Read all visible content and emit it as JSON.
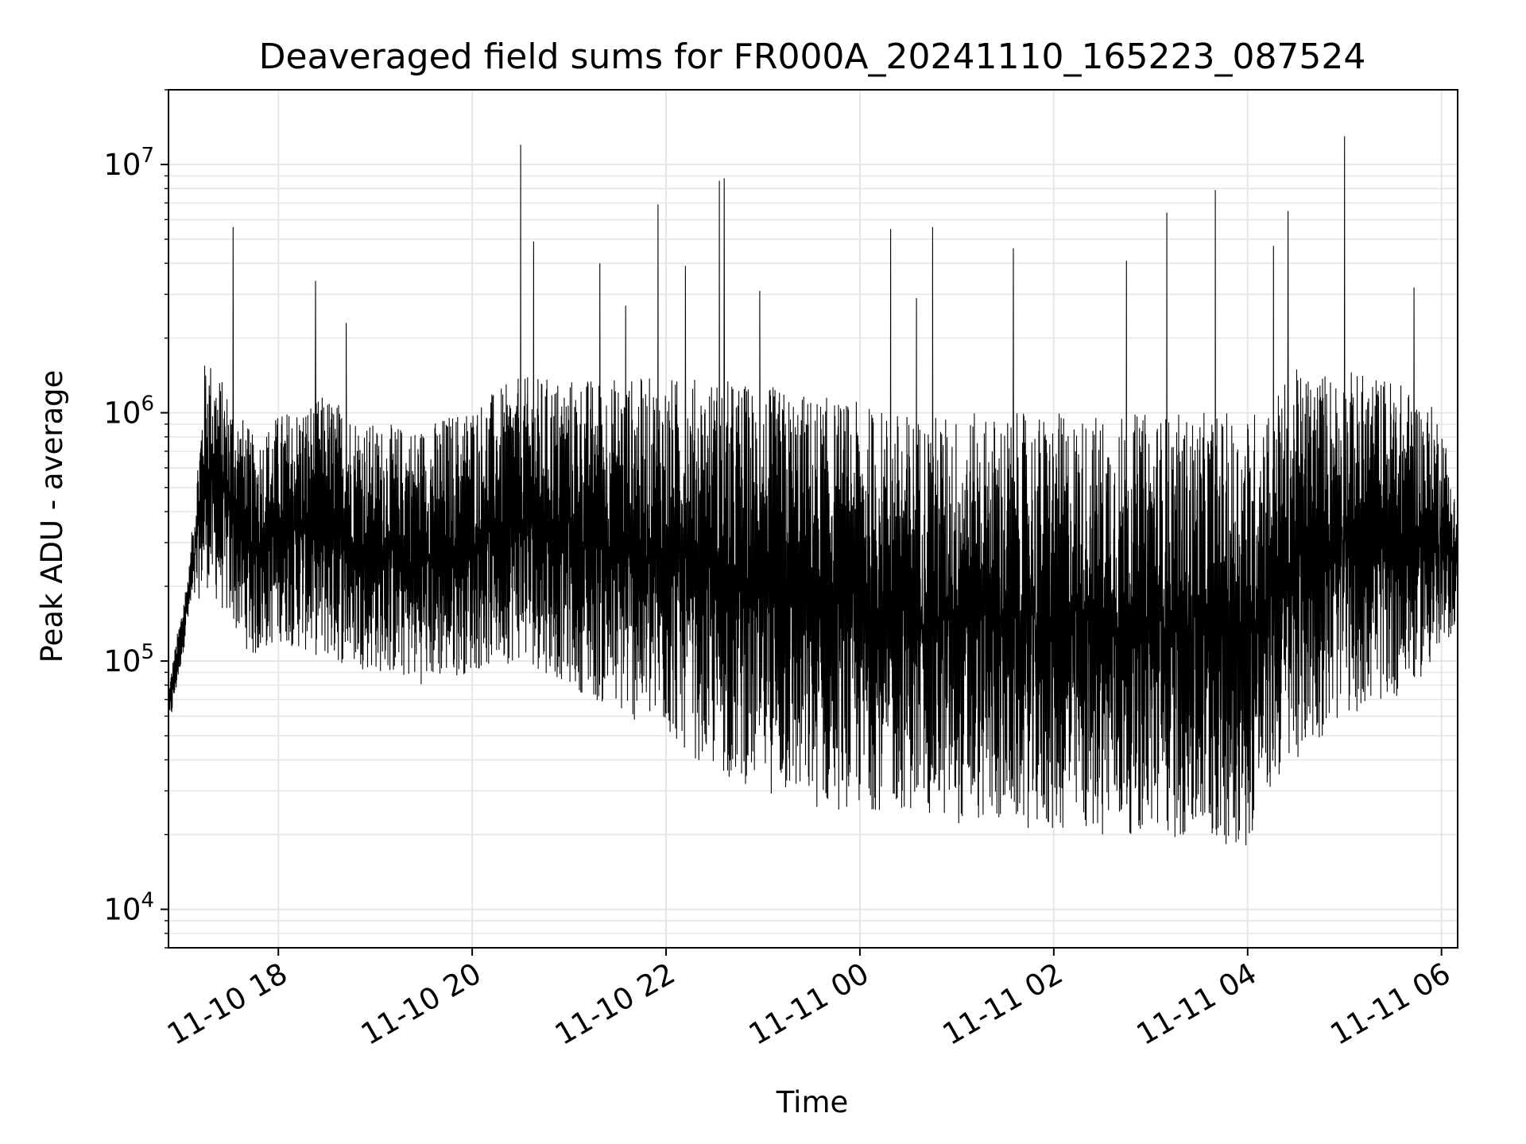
{
  "chart_data": {
    "type": "line",
    "title": "Deaveraged field sums for FR000A_20241110_165223_087524",
    "xlabel": "Time",
    "ylabel": "Peak ADU - average",
    "yscale": "log",
    "xlim": [
      "2024-11-10 16:52",
      "2024-11-11 06:10"
    ],
    "ylim": [
      7000,
      20000000
    ],
    "grid": true,
    "x_ticks": [
      {
        "value": "2024-11-10 18:00",
        "label": "11-10 18"
      },
      {
        "value": "2024-11-10 20:00",
        "label": "11-10 20"
      },
      {
        "value": "2024-11-10 22:00",
        "label": "11-10 22"
      },
      {
        "value": "2024-11-11 00:00",
        "label": "11-11 00"
      },
      {
        "value": "2024-11-11 02:00",
        "label": "11-11 02"
      },
      {
        "value": "2024-11-11 04:00",
        "label": "11-11 04"
      },
      {
        "value": "2024-11-11 06:00",
        "label": "11-11 06"
      }
    ],
    "y_ticks": [
      {
        "value": 10000,
        "base": "10",
        "exp": "4"
      },
      {
        "value": 100000,
        "base": "10",
        "exp": "5"
      },
      {
        "value": 1000000,
        "base": "10",
        "exp": "6"
      },
      {
        "value": 10000000,
        "base": "10",
        "exp": "7"
      }
    ],
    "line_color": "#000000",
    "envelope": [
      {
        "t": "2024-11-10 16:52",
        "low": 50000,
        "high": 80000
      },
      {
        "t": "2024-11-10 17:05",
        "low": 150000,
        "high": 250000
      },
      {
        "t": "2024-11-10 17:15",
        "low": 200000,
        "high": 1800000
      },
      {
        "t": "2024-11-10 17:45",
        "low": 100000,
        "high": 800000
      },
      {
        "t": "2024-11-10 18:00",
        "low": 120000,
        "high": 1000000
      },
      {
        "t": "2024-11-10 18:30",
        "low": 100000,
        "high": 1200000
      },
      {
        "t": "2024-11-10 19:00",
        "low": 90000,
        "high": 900000
      },
      {
        "t": "2024-11-10 19:30",
        "low": 80000,
        "high": 900000
      },
      {
        "t": "2024-11-10 20:00",
        "low": 90000,
        "high": 1100000
      },
      {
        "t": "2024-11-10 20:30",
        "low": 100000,
        "high": 1400000
      },
      {
        "t": "2024-11-10 21:00",
        "low": 80000,
        "high": 1400000
      },
      {
        "t": "2024-11-10 21:30",
        "low": 60000,
        "high": 1400000
      },
      {
        "t": "2024-11-10 22:00",
        "low": 50000,
        "high": 1400000
      },
      {
        "t": "2024-11-10 22:30",
        "low": 35000,
        "high": 1400000
      },
      {
        "t": "2024-11-10 23:00",
        "low": 30000,
        "high": 1300000
      },
      {
        "t": "2024-11-10 23:30",
        "low": 25000,
        "high": 1200000
      },
      {
        "t": "2024-11-11 00:00",
        "low": 25000,
        "high": 1100000
      },
      {
        "t": "2024-11-11 00:30",
        "low": 25000,
        "high": 1000000
      },
      {
        "t": "2024-11-11 01:00",
        "low": 22000,
        "high": 1000000
      },
      {
        "t": "2024-11-11 01:30",
        "low": 22000,
        "high": 1000000
      },
      {
        "t": "2024-11-11 02:00",
        "low": 20000,
        "high": 1000000
      },
      {
        "t": "2024-11-11 02:30",
        "low": 20000,
        "high": 1000000
      },
      {
        "t": "2024-11-11 03:00",
        "low": 20000,
        "high": 1000000
      },
      {
        "t": "2024-11-11 03:30",
        "low": 18000,
        "high": 1000000
      },
      {
        "t": "2024-11-11 04:00",
        "low": 18000,
        "high": 1000000
      },
      {
        "t": "2024-11-11 04:15",
        "low": 30000,
        "high": 1200000
      },
      {
        "t": "2024-11-11 04:30",
        "low": 40000,
        "high": 1500000
      },
      {
        "t": "2024-11-11 05:00",
        "low": 60000,
        "high": 1500000
      },
      {
        "t": "2024-11-11 05:30",
        "low": 70000,
        "high": 1400000
      },
      {
        "t": "2024-11-11 06:00",
        "low": 100000,
        "high": 1000000
      },
      {
        "t": "2024-11-11 06:10",
        "low": 150000,
        "high": 400000
      }
    ],
    "spikes": [
      {
        "t": "2024-11-10 17:32",
        "value": 5600000
      },
      {
        "t": "2024-11-10 18:23",
        "value": 3400000
      },
      {
        "t": "2024-11-10 18:42",
        "value": 2300000
      },
      {
        "t": "2024-11-10 20:30",
        "value": 12000000
      },
      {
        "t": "2024-11-10 20:38",
        "value": 4900000
      },
      {
        "t": "2024-11-10 21:19",
        "value": 4000000
      },
      {
        "t": "2024-11-10 21:35",
        "value": 2700000
      },
      {
        "t": "2024-11-10 21:55",
        "value": 6900000
      },
      {
        "t": "2024-11-10 22:12",
        "value": 3900000
      },
      {
        "t": "2024-11-10 22:33",
        "value": 8600000
      },
      {
        "t": "2024-11-10 22:36",
        "value": 8800000
      },
      {
        "t": "2024-11-10 22:58",
        "value": 3100000
      },
      {
        "t": "2024-11-11 00:19",
        "value": 5500000
      },
      {
        "t": "2024-11-11 00:35",
        "value": 2900000
      },
      {
        "t": "2024-11-11 00:45",
        "value": 5600000
      },
      {
        "t": "2024-11-11 01:35",
        "value": 4600000
      },
      {
        "t": "2024-11-11 02:45",
        "value": 4100000
      },
      {
        "t": "2024-11-11 03:10",
        "value": 6400000
      },
      {
        "t": "2024-11-11 03:40",
        "value": 7900000
      },
      {
        "t": "2024-11-11 04:16",
        "value": 4700000
      },
      {
        "t": "2024-11-11 04:25",
        "value": 6500000
      },
      {
        "t": "2024-11-11 05:00",
        "value": 13000000
      },
      {
        "t": "2024-11-11 05:43",
        "value": 3200000
      }
    ]
  }
}
